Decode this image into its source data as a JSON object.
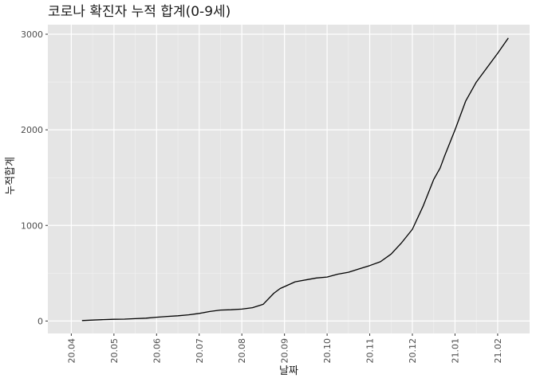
{
  "chart_data": {
    "type": "line",
    "title": "코로나 확진자 누적 합계(0-9세)",
    "xlabel": "날짜",
    "ylabel": "누적합계",
    "ylim": [
      -130,
      3100
    ],
    "y_ticks": [
      0,
      1000,
      2000,
      3000
    ],
    "y_tick_labels": [
      "0",
      "1000",
      "2000",
      "3000"
    ],
    "x_tick_labels": [
      "20.04",
      "20.05",
      "20.06",
      "20.07",
      "20.08",
      "20.09",
      "20.10",
      "20.11",
      "20.12",
      "21.01",
      "21.02"
    ],
    "x_months_range": [
      -0.55,
      10.75
    ],
    "grid": true,
    "line_color": "#000000",
    "panel_color": "#e5e5e5",
    "series": [
      {
        "x": [
          0.25,
          0.5,
          0.75,
          1.0,
          1.25,
          1.5,
          1.75,
          2.0,
          2.25,
          2.5,
          2.75,
          3.0,
          3.25,
          3.5,
          3.75,
          4.0,
          4.25,
          4.5,
          4.75,
          4.9,
          5.0,
          5.25,
          5.5,
          5.75,
          6.0,
          6.25,
          6.5,
          6.75,
          7.0,
          7.25,
          7.5,
          7.75,
          8.0,
          8.25,
          8.5,
          8.65,
          8.75,
          9.0,
          9.25,
          9.5,
          9.75,
          10.0,
          10.25
        ],
        "y": [
          5,
          10,
          15,
          18,
          20,
          25,
          30,
          40,
          48,
          55,
          65,
          80,
          100,
          115,
          118,
          125,
          140,
          175,
          290,
          340,
          360,
          410,
          430,
          450,
          460,
          490,
          510,
          545,
          580,
          620,
          700,
          820,
          960,
          1200,
          1480,
          1600,
          1720,
          2000,
          2300,
          2500,
          2650,
          2800,
          2960
        ]
      }
    ]
  }
}
